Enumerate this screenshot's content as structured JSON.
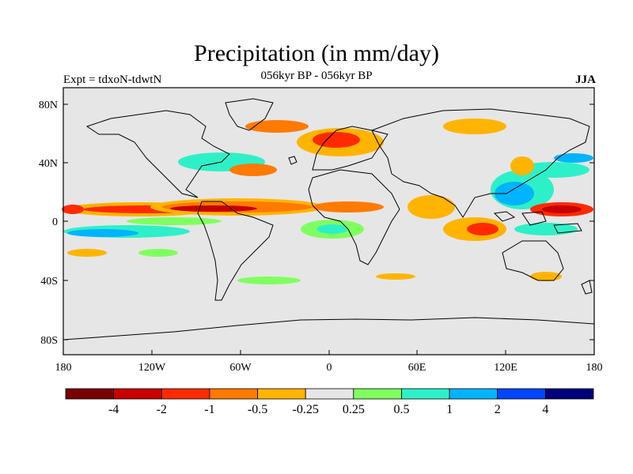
{
  "title": "Precipitation (in mm/day)",
  "subtitle": "056kyr BP - 056kyr BP",
  "left_label": "Expt = tdxoN-tdwtN",
  "right_label": "JJA",
  "y_ticks": [
    "80N",
    "40N",
    "0",
    "40S",
    "80S"
  ],
  "x_ticks": [
    "180",
    "120W",
    "60W",
    "0",
    "60E",
    "120E",
    "180"
  ],
  "colorbar": {
    "colors": [
      "#7a0000",
      "#c80000",
      "#ff2a00",
      "#ff7a00",
      "#ffb400",
      "#e6e6e6",
      "#7fff5f",
      "#2ef0c8",
      "#00b4ff",
      "#0046ff",
      "#00007a"
    ],
    "labels": [
      "-4",
      "-2",
      "-1",
      "-0.5",
      "-0.25",
      "0.25",
      "0.5",
      "1",
      "2",
      "4"
    ]
  },
  "colors": {
    "ocean_background": "#e6e6e6",
    "coastline": "#000000"
  }
}
